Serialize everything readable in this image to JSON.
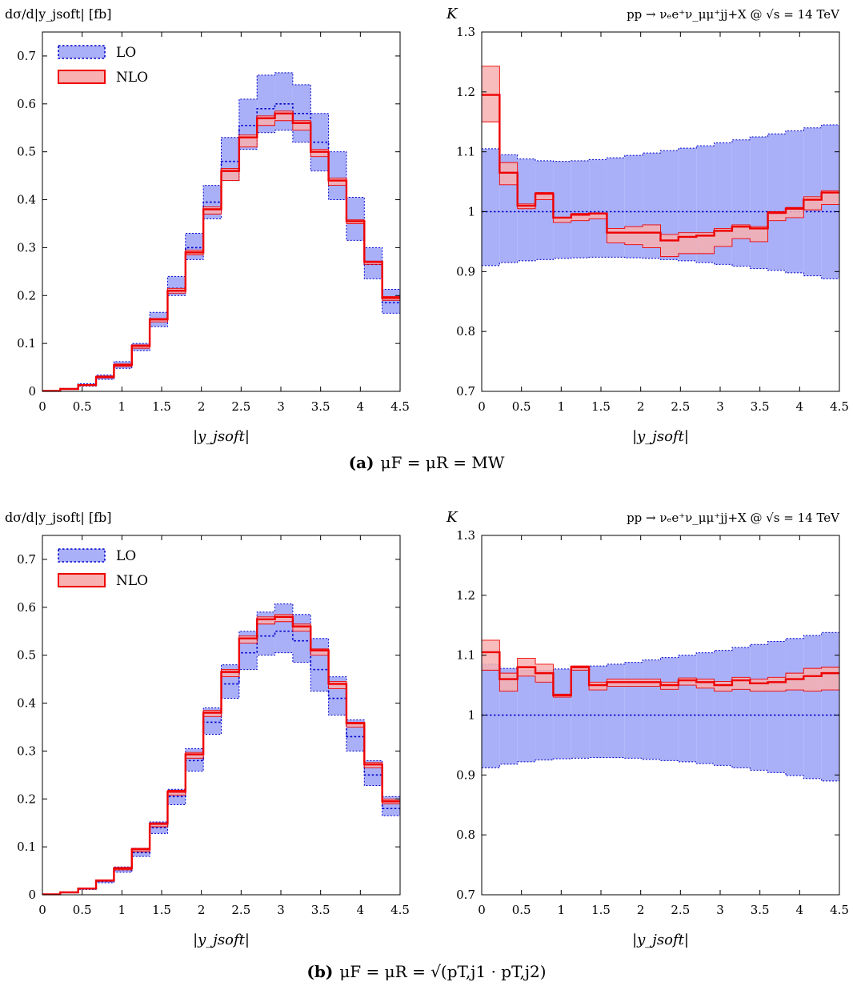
{
  "figure": {
    "process_label": "pp → νₑe⁺ν_μμ⁺jj+X @ √s = 14 TeV",
    "captions": [
      {
        "tag": "(a)",
        "text": "μF = μR = MW"
      },
      {
        "tag": "(b)",
        "text": "μF = μR = √(pT,j1 · pT,j2)"
      }
    ]
  },
  "colors": {
    "lo_fill": "#aab0f8",
    "lo_line": "#0000cc",
    "nlo_fill": "#f8b0b0",
    "nlo_line": "#ee0000"
  },
  "chart_data": [
    {
      "id": "a-dist",
      "type": "area",
      "panel": "a",
      "kind": "distribution",
      "title": "",
      "ylabel": "dσ/d|y_jsoft| [fb]",
      "xlabel": "|y_jsoft|",
      "xlim": [
        0,
        4.5
      ],
      "ylim": [
        0,
        0.75
      ],
      "xticks": [
        0,
        0.5,
        1,
        1.5,
        2,
        2.5,
        3,
        3.5,
        4,
        4.5
      ],
      "yticks": [
        0,
        0.1,
        0.2,
        0.3,
        0.4,
        0.5,
        0.6,
        0.7
      ],
      "legend": {
        "position": "top-left",
        "entries": [
          "LO",
          "NLO"
        ]
      },
      "bin_edges": [
        0,
        0.225,
        0.45,
        0.675,
        0.9,
        1.125,
        1.35,
        1.575,
        1.8,
        2.025,
        2.25,
        2.475,
        2.7,
        2.925,
        3.15,
        3.375,
        3.6,
        3.825,
        4.05,
        4.275,
        4.5
      ],
      "series": [
        {
          "name": "LO",
          "central": [
            0.001,
            0.005,
            0.013,
            0.03,
            0.055,
            0.095,
            0.15,
            0.215,
            0.3,
            0.395,
            0.48,
            0.555,
            0.59,
            0.6,
            0.58,
            0.52,
            0.44,
            0.355,
            0.265,
            0.185
          ],
          "low": [
            0.001,
            0.004,
            0.011,
            0.025,
            0.048,
            0.085,
            0.135,
            0.2,
            0.275,
            0.36,
            0.44,
            0.505,
            0.54,
            0.545,
            0.52,
            0.46,
            0.4,
            0.315,
            0.235,
            0.163
          ],
          "high": [
            0.001,
            0.006,
            0.016,
            0.034,
            0.062,
            0.1,
            0.165,
            0.24,
            0.33,
            0.43,
            0.53,
            0.61,
            0.66,
            0.665,
            0.64,
            0.58,
            0.5,
            0.405,
            0.3,
            0.213
          ]
        },
        {
          "name": "NLO",
          "central": [
            0.001,
            0.005,
            0.013,
            0.03,
            0.055,
            0.095,
            0.15,
            0.21,
            0.29,
            0.38,
            0.46,
            0.53,
            0.57,
            0.58,
            0.56,
            0.5,
            0.44,
            0.355,
            0.27,
            0.195
          ],
          "low": [
            0.001,
            0.004,
            0.012,
            0.028,
            0.052,
            0.09,
            0.145,
            0.205,
            0.285,
            0.37,
            0.44,
            0.51,
            0.555,
            0.565,
            0.545,
            0.49,
            0.43,
            0.35,
            0.265,
            0.19
          ],
          "high": [
            0.001,
            0.006,
            0.014,
            0.032,
            0.057,
            0.097,
            0.152,
            0.215,
            0.295,
            0.385,
            0.465,
            0.535,
            0.575,
            0.585,
            0.565,
            0.505,
            0.445,
            0.358,
            0.272,
            0.198
          ]
        }
      ]
    },
    {
      "id": "a-k",
      "type": "area",
      "panel": "a",
      "kind": "ratio",
      "title": "",
      "ylabel": "K",
      "xlabel": "|y_jsoft|",
      "xlim": [
        0,
        4.5
      ],
      "ylim": [
        0.7,
        1.3
      ],
      "xticks": [
        0,
        0.5,
        1,
        1.5,
        2,
        2.5,
        3,
        3.5,
        4,
        4.5
      ],
      "yticks": [
        0.7,
        0.8,
        0.9,
        1,
        1.1,
        1.2,
        1.3
      ],
      "bin_edges": [
        0,
        0.225,
        0.45,
        0.675,
        0.9,
        1.125,
        1.35,
        1.575,
        1.8,
        2.025,
        2.25,
        2.475,
        2.7,
        2.925,
        3.15,
        3.375,
        3.6,
        3.825,
        4.05,
        4.275,
        4.5
      ],
      "series": [
        {
          "name": "LO",
          "central": [
            1,
            1,
            1,
            1,
            1,
            1,
            1,
            1,
            1,
            1,
            1,
            1,
            1,
            1,
            1,
            1,
            1,
            1,
            1,
            1
          ],
          "low": [
            0.91,
            0.915,
            0.918,
            0.92,
            0.922,
            0.923,
            0.924,
            0.924,
            0.923,
            0.922,
            0.92,
            0.918,
            0.915,
            0.912,
            0.909,
            0.905,
            0.902,
            0.898,
            0.893,
            0.888
          ],
          "high": [
            1.105,
            1.095,
            1.088,
            1.085,
            1.084,
            1.085,
            1.087,
            1.09,
            1.094,
            1.098,
            1.102,
            1.106,
            1.11,
            1.115,
            1.12,
            1.125,
            1.13,
            1.135,
            1.14,
            1.145
          ]
        },
        {
          "name": "NLO",
          "central": [
            1.195,
            1.065,
            1.01,
            1.03,
            0.99,
            0.995,
            0.997,
            0.965,
            0.965,
            0.965,
            0.952,
            0.958,
            0.96,
            0.968,
            0.975,
            0.972,
            0.998,
            1.005,
            1.02,
            1.032
          ],
          "low": [
            1.15,
            1.045,
            1.005,
            1.02,
            0.982,
            0.985,
            0.988,
            0.948,
            0.945,
            0.94,
            0.925,
            0.93,
            0.93,
            0.942,
            0.955,
            0.95,
            0.985,
            0.99,
            1.003,
            1.012
          ],
          "high": [
            1.243,
            1.082,
            1.013,
            1.032,
            0.99,
            0.997,
            0.998,
            0.972,
            0.975,
            0.978,
            0.962,
            0.965,
            0.965,
            0.972,
            0.978,
            0.975,
            1.0,
            1.007,
            1.025,
            1.035
          ]
        }
      ]
    },
    {
      "id": "b-dist",
      "type": "area",
      "panel": "b",
      "kind": "distribution",
      "title": "",
      "ylabel": "dσ/d|y_jsoft| [fb]",
      "xlabel": "|y_jsoft|",
      "xlim": [
        0,
        4.5
      ],
      "ylim": [
        0,
        0.75
      ],
      "xticks": [
        0,
        0.5,
        1,
        1.5,
        2,
        2.5,
        3,
        3.5,
        4,
        4.5
      ],
      "yticks": [
        0,
        0.1,
        0.2,
        0.3,
        0.4,
        0.5,
        0.6,
        0.7
      ],
      "legend": {
        "position": "top-left",
        "entries": [
          "LO",
          "NLO"
        ]
      },
      "bin_edges": [
        0,
        0.225,
        0.45,
        0.675,
        0.9,
        1.125,
        1.35,
        1.575,
        1.8,
        2.025,
        2.25,
        2.475,
        2.7,
        2.925,
        3.15,
        3.375,
        3.6,
        3.825,
        4.05,
        4.275,
        4.5
      ],
      "series": [
        {
          "name": "LO",
          "central": [
            0.001,
            0.005,
            0.012,
            0.028,
            0.052,
            0.088,
            0.14,
            0.205,
            0.28,
            0.36,
            0.44,
            0.505,
            0.54,
            0.55,
            0.53,
            0.47,
            0.41,
            0.33,
            0.25,
            0.18
          ],
          "low": [
            0.001,
            0.004,
            0.011,
            0.025,
            0.047,
            0.08,
            0.128,
            0.188,
            0.258,
            0.335,
            0.41,
            0.47,
            0.5,
            0.505,
            0.485,
            0.425,
            0.375,
            0.3,
            0.228,
            0.165
          ],
          "high": [
            0.001,
            0.006,
            0.014,
            0.031,
            0.058,
            0.097,
            0.152,
            0.22,
            0.305,
            0.39,
            0.48,
            0.55,
            0.59,
            0.607,
            0.585,
            0.535,
            0.455,
            0.365,
            0.28,
            0.205
          ]
        },
        {
          "name": "NLO",
          "central": [
            0.001,
            0.005,
            0.013,
            0.03,
            0.055,
            0.095,
            0.148,
            0.215,
            0.293,
            0.38,
            0.465,
            0.535,
            0.575,
            0.58,
            0.56,
            0.51,
            0.44,
            0.358,
            0.272,
            0.195
          ],
          "low": [
            0.001,
            0.004,
            0.012,
            0.028,
            0.052,
            0.09,
            0.142,
            0.208,
            0.285,
            0.372,
            0.455,
            0.525,
            0.565,
            0.57,
            0.55,
            0.5,
            0.43,
            0.35,
            0.265,
            0.19
          ],
          "high": [
            0.001,
            0.006,
            0.014,
            0.031,
            0.057,
            0.097,
            0.15,
            0.218,
            0.297,
            0.385,
            0.47,
            0.54,
            0.58,
            0.585,
            0.565,
            0.513,
            0.445,
            0.36,
            0.276,
            0.2
          ]
        }
      ]
    },
    {
      "id": "b-k",
      "type": "area",
      "panel": "b",
      "kind": "ratio",
      "title": "",
      "ylabel": "K",
      "xlabel": "|y_jsoft|",
      "xlim": [
        0,
        4.5
      ],
      "ylim": [
        0.7,
        1.3
      ],
      "xticks": [
        0,
        0.5,
        1,
        1.5,
        2,
        2.5,
        3,
        3.5,
        4,
        4.5
      ],
      "yticks": [
        0.7,
        0.8,
        0.9,
        1,
        1.1,
        1.2,
        1.3
      ],
      "bin_edges": [
        0,
        0.225,
        0.45,
        0.675,
        0.9,
        1.125,
        1.35,
        1.575,
        1.8,
        2.025,
        2.25,
        2.475,
        2.7,
        2.925,
        3.15,
        3.375,
        3.6,
        3.825,
        4.05,
        4.275,
        4.5
      ],
      "series": [
        {
          "name": "LO",
          "central": [
            1,
            1,
            1,
            1,
            1,
            1,
            1,
            1,
            1,
            1,
            1,
            1,
            1,
            1,
            1,
            1,
            1,
            1,
            1,
            1
          ],
          "low": [
            0.912,
            0.918,
            0.922,
            0.925,
            0.927,
            0.928,
            0.929,
            0.929,
            0.928,
            0.926,
            0.924,
            0.922,
            0.919,
            0.916,
            0.912,
            0.908,
            0.904,
            0.899,
            0.894,
            0.89
          ],
          "high": [
            1.085,
            1.078,
            1.075,
            1.075,
            1.077,
            1.079,
            1.082,
            1.085,
            1.088,
            1.092,
            1.096,
            1.1,
            1.104,
            1.108,
            1.113,
            1.118,
            1.123,
            1.128,
            1.133,
            1.138
          ]
        },
        {
          "name": "NLO",
          "central": [
            1.105,
            1.06,
            1.08,
            1.07,
            1.033,
            1.08,
            1.05,
            1.055,
            1.055,
            1.055,
            1.05,
            1.058,
            1.055,
            1.05,
            1.058,
            1.053,
            1.055,
            1.06,
            1.065,
            1.07
          ],
          "low": [
            1.075,
            1.04,
            1.065,
            1.055,
            1.03,
            1.075,
            1.042,
            1.048,
            1.048,
            1.048,
            1.043,
            1.05,
            1.045,
            1.04,
            1.043,
            1.04,
            1.04,
            1.042,
            1.04,
            1.042
          ],
          "high": [
            1.125,
            1.07,
            1.095,
            1.085,
            1.035,
            1.082,
            1.055,
            1.06,
            1.06,
            1.06,
            1.055,
            1.062,
            1.06,
            1.056,
            1.063,
            1.06,
            1.063,
            1.07,
            1.078,
            1.08
          ]
        }
      ]
    }
  ]
}
